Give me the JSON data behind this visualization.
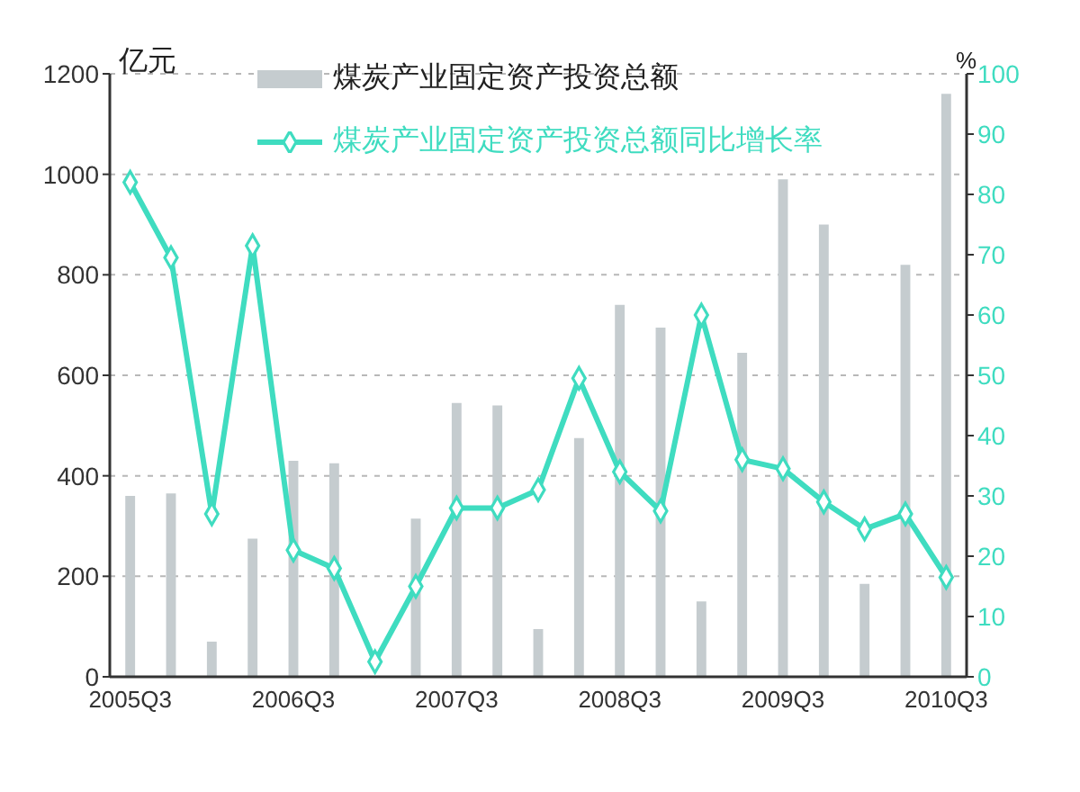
{
  "chart_data": {
    "type": "bar",
    "ylabel": "亿元",
    "y2label": "%",
    "categories": [
      "2005Q3",
      null,
      null,
      null,
      "2006Q3",
      null,
      null,
      null,
      "2007Q3",
      null,
      null,
      null,
      "2008Q3",
      null,
      null,
      null,
      "2009Q3",
      null,
      null,
      null,
      "2010Q3"
    ],
    "series": [
      {
        "name": "煤炭产业固定资产投资总额",
        "color": "#c5cccf",
        "values": [
          360,
          365,
          70,
          275,
          430,
          425,
          null,
          315,
          545,
          540,
          95,
          475,
          740,
          695,
          150,
          645,
          990,
          900,
          185,
          820,
          1160
        ]
      },
      {
        "name": "煤炭产业固定资产投资总额同比增长率",
        "type": "line",
        "axis": "y2",
        "color": "#3fdcc0",
        "marker": "diamond",
        "values": [
          82,
          69.5,
          27,
          71.5,
          21,
          18,
          2.5,
          15,
          28,
          28,
          31,
          49.5,
          34,
          27.5,
          60,
          36,
          34.5,
          29,
          24.5,
          27,
          16.5
        ]
      }
    ],
    "ylim": [
      0,
      1200
    ],
    "yticks": [
      0,
      200,
      400,
      600,
      800,
      1000,
      1200
    ],
    "y2lim": [
      0,
      100
    ],
    "y2ticks": [
      0,
      10,
      20,
      30,
      40,
      50,
      60,
      70,
      80,
      90,
      100
    ],
    "grid": "y",
    "legend": "top"
  }
}
